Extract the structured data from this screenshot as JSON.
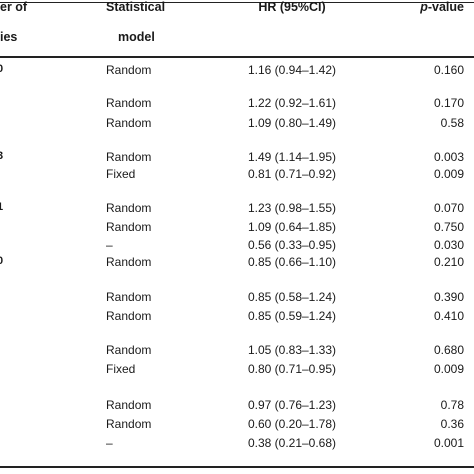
{
  "header": {
    "studies_line1": "er of",
    "studies_line2": "ies",
    "model_line1": "Statistical",
    "model_line2": "model",
    "hr": "HR (95%CI)",
    "p_italic": "p",
    "p_rest": "-value"
  },
  "left_fragments": [
    "0",
    "3",
    "1",
    "0"
  ],
  "rows": [
    {
      "model": "Random",
      "hr": "1.16 (0.94–1.42)",
      "p": "0.160"
    },
    {
      "model": "Random",
      "hr": "1.22 (0.92–1.61)",
      "p": "0.170"
    },
    {
      "model": "Random",
      "hr": "1.09 (0.80–1.49)",
      "p": "0.58"
    },
    {
      "model": "Random",
      "hr": "1.49 (1.14–1.95)",
      "p": "0.003"
    },
    {
      "model": "Fixed",
      "hr": "0.81 (0.71–0.92)",
      "p": "0.009"
    },
    {
      "model": "Random",
      "hr": "1.23 (0.98–1.55)",
      "p": "0.070"
    },
    {
      "model": "Random",
      "hr": "1.09 (0.64–1.85)",
      "p": "0.750"
    },
    {
      "model": "–",
      "hr": "0.56 (0.33–0.95)",
      "p": "0.030"
    },
    {
      "model": "Random",
      "hr": "0.85 (0.66–1.10)",
      "p": "0.210"
    },
    {
      "model": "Random",
      "hr": "0.85 (0.58–1.24)",
      "p": "0.390"
    },
    {
      "model": "Random",
      "hr": "0.85 (0.59–1.24)",
      "p": "0.410"
    },
    {
      "model": "Random",
      "hr": "1.05 (0.83–1.33)",
      "p": "0.680"
    },
    {
      "model": "Fixed",
      "hr": "0.80 (0.71–0.95)",
      "p": "0.009"
    },
    {
      "model": "Random",
      "hr": "0.97 (0.76–1.23)",
      "p": "0.78"
    },
    {
      "model": "Random",
      "hr": "0.60 (0.20–1.78)",
      "p": "0.36"
    },
    {
      "model": "–",
      "hr": "0.38 (0.21–0.68)",
      "p": "0.001"
    }
  ]
}
